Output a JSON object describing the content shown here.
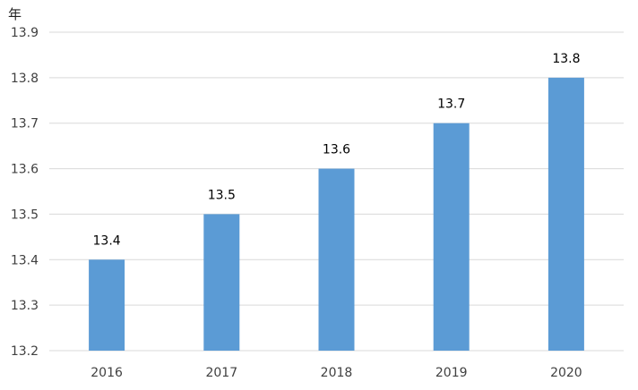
{
  "chart_data": {
    "type": "bar",
    "unit_label": "年",
    "categories": [
      "2016",
      "2017",
      "2018",
      "2019",
      "2020"
    ],
    "values": [
      13.4,
      13.5,
      13.6,
      13.7,
      13.8
    ],
    "data_labels": [
      "13.4",
      "13.5",
      "13.6",
      "13.7",
      "13.8"
    ],
    "ylim": [
      13.2,
      13.9
    ],
    "yticks": [
      13.2,
      13.3,
      13.4,
      13.5,
      13.6,
      13.7,
      13.8,
      13.9
    ],
    "ytick_labels": [
      "13.2",
      "13.3",
      "13.4",
      "13.5",
      "13.6",
      "13.7",
      "13.8",
      "13.9"
    ],
    "grid": true,
    "bar_color": "#5b9bd5",
    "grid_color": "#d9d9d9",
    "text_color": "#404040"
  }
}
